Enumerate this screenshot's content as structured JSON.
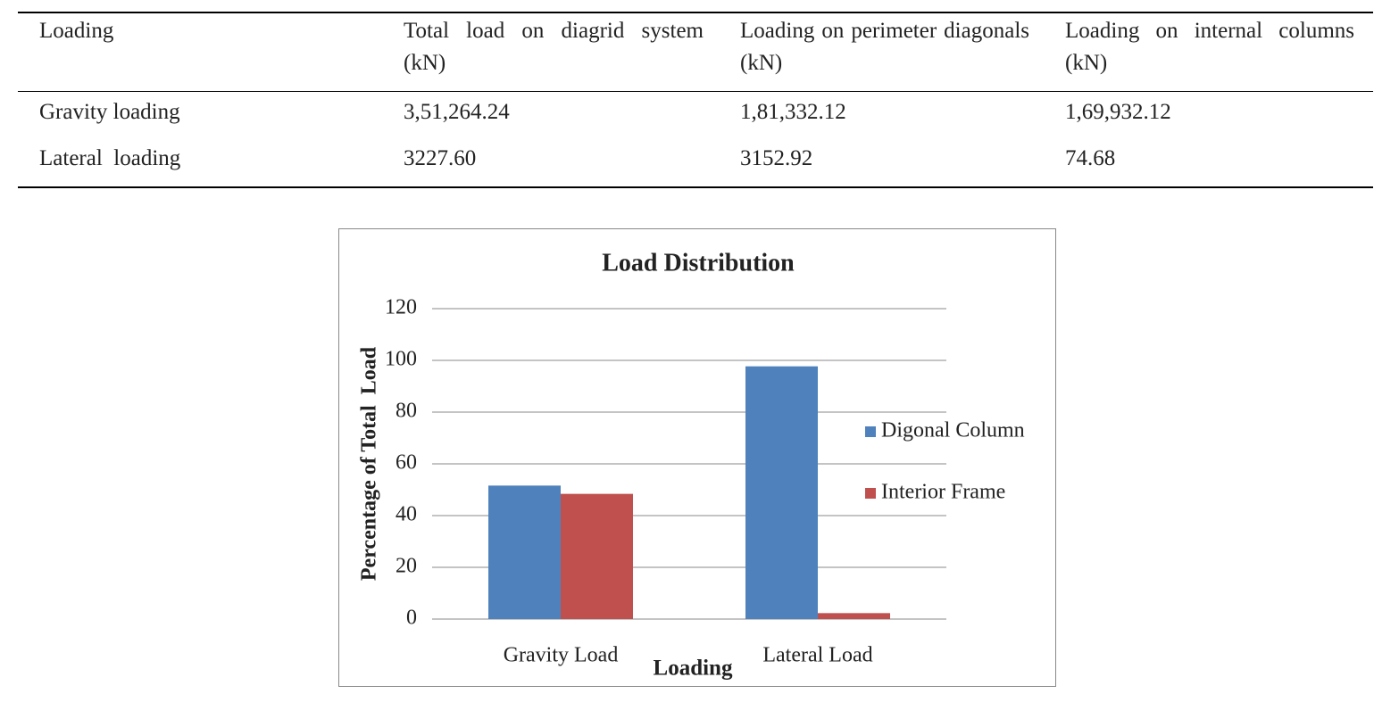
{
  "table": {
    "header": [
      "Loading",
      "Total load on diagrid system (kN)",
      "Loading on perimeter diagonals (kN)",
      "Loading on internal columns (kN)"
    ],
    "rows": [
      [
        "Gravity loading",
        "3,51,264.24",
        "1,81,332.12",
        "1,69,932.12"
      ],
      [
        "Lateral  loading",
        "3227.60",
        "3152.92",
        "74.68"
      ]
    ]
  },
  "chart_data": {
    "type": "bar",
    "title": "Load Distribution",
    "x_label": "Loading",
    "y_label": "Percentage of Total  Load",
    "categories": [
      "Gravity Load",
      "Lateral Load"
    ],
    "series": [
      {
        "name": "Digonal Column",
        "color": "#4f81bd",
        "values": [
          51.6,
          97.7
        ]
      },
      {
        "name": "Interior Frame",
        "color": "#c0504d",
        "values": [
          48.4,
          2.3
        ]
      }
    ],
    "ylim": [
      0,
      120
    ],
    "yticks": [
      0,
      20,
      40,
      60,
      80,
      100,
      120
    ],
    "grid": true,
    "legend": "right"
  }
}
